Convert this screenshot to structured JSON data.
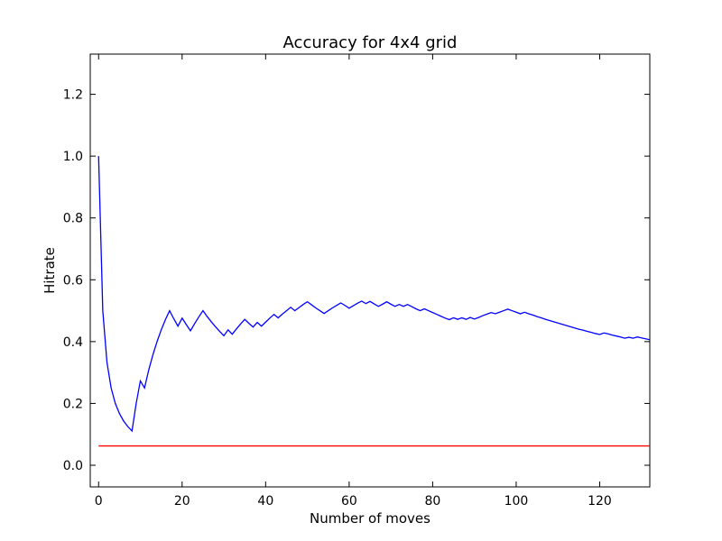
{
  "chart_data": {
    "type": "line",
    "title": "Accuracy for 4x4 grid",
    "xlabel": "Number of moves",
    "ylabel": "Hitrate",
    "xlim": [
      -2,
      132
    ],
    "ylim": [
      -0.07,
      1.33
    ],
    "xticks": [
      0,
      20,
      40,
      60,
      80,
      100,
      120
    ],
    "yticks": [
      0.0,
      0.2,
      0.4,
      0.6,
      0.8,
      1.0,
      1.2
    ],
    "xtick_labels": [
      "0",
      "20",
      "40",
      "60",
      "80",
      "100",
      "120"
    ],
    "ytick_labels": [
      "0.0",
      "0.2",
      "0.4",
      "0.6",
      "0.8",
      "1.0",
      "1.2"
    ],
    "grid": false,
    "series": [
      {
        "color": "#0000ff",
        "x": [
          0,
          1,
          2,
          3,
          4,
          5,
          6,
          7,
          8,
          9,
          10,
          11,
          12,
          13,
          14,
          15,
          16,
          17,
          18,
          19,
          20,
          21,
          22,
          23,
          24,
          25,
          26,
          27,
          28,
          29,
          30,
          31,
          32,
          33,
          34,
          35,
          36,
          37,
          38,
          39,
          40,
          41,
          42,
          43,
          44,
          45,
          46,
          47,
          48,
          49,
          50,
          51,
          52,
          53,
          54,
          55,
          56,
          57,
          58,
          59,
          60,
          61,
          62,
          63,
          64,
          65,
          66,
          67,
          68,
          69,
          70,
          71,
          72,
          73,
          74,
          75,
          76,
          77,
          78,
          79,
          80,
          81,
          82,
          83,
          84,
          85,
          86,
          87,
          88,
          89,
          90,
          91,
          92,
          93,
          94,
          95,
          96,
          97,
          98,
          99,
          100,
          101,
          102,
          103,
          104,
          105,
          106,
          107,
          108,
          109,
          110,
          111,
          112,
          113,
          114,
          115,
          116,
          117,
          118,
          119,
          120,
          121,
          122,
          123,
          124,
          125,
          126,
          127,
          128,
          129,
          130,
          131,
          132
        ],
        "y": [
          1.0,
          0.5,
          0.333,
          0.25,
          0.2,
          0.167,
          0.143,
          0.125,
          0.111,
          0.2,
          0.273,
          0.25,
          0.308,
          0.357,
          0.4,
          0.438,
          0.471,
          0.5,
          0.474,
          0.45,
          0.476,
          0.455,
          0.435,
          0.458,
          0.48,
          0.5,
          0.481,
          0.464,
          0.448,
          0.433,
          0.419,
          0.438,
          0.424,
          0.441,
          0.457,
          0.472,
          0.459,
          0.447,
          0.462,
          0.45,
          0.463,
          0.476,
          0.488,
          0.477,
          0.489,
          0.5,
          0.511,
          0.5,
          0.51,
          0.52,
          0.529,
          0.519,
          0.509,
          0.5,
          0.491,
          0.5,
          0.509,
          0.517,
          0.525,
          0.517,
          0.508,
          0.516,
          0.524,
          0.531,
          0.523,
          0.53,
          0.522,
          0.514,
          0.521,
          0.529,
          0.521,
          0.514,
          0.52,
          0.514,
          0.52,
          0.513,
          0.506,
          0.5,
          0.506,
          0.5,
          0.494,
          0.488,
          0.482,
          0.476,
          0.471,
          0.477,
          0.472,
          0.477,
          0.472,
          0.478,
          0.473,
          0.478,
          0.484,
          0.489,
          0.494,
          0.49,
          0.495,
          0.5,
          0.505,
          0.5,
          0.495,
          0.49,
          0.495,
          0.49,
          0.486,
          0.481,
          0.477,
          0.472,
          0.468,
          0.464,
          0.46,
          0.456,
          0.452,
          0.448,
          0.444,
          0.44,
          0.437,
          0.433,
          0.43,
          0.426,
          0.423,
          0.428,
          0.425,
          0.421,
          0.418,
          0.415,
          0.411,
          0.414,
          0.411,
          0.415,
          0.412,
          0.409,
          0.406
        ]
      },
      {
        "color": "#ff0000",
        "x": [
          0,
          132
        ],
        "y": [
          0.0625,
          0.0625
        ]
      }
    ]
  }
}
